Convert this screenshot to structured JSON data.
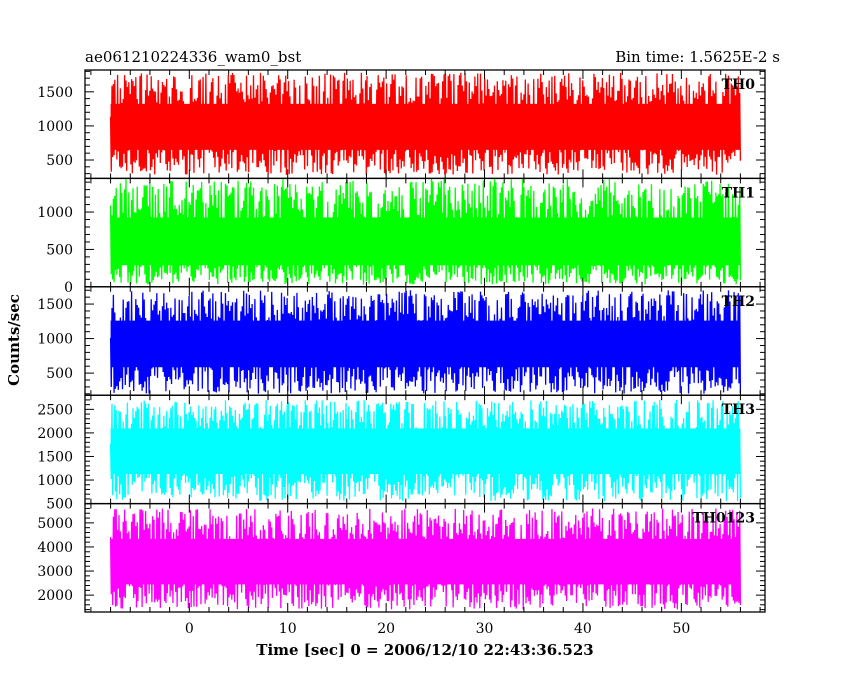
{
  "title_left": "ae061210224336_wam0_bst",
  "title_right": "Bin time: 1.5625E-2 s",
  "ylabel": "Counts/sec",
  "xlabel": "Time [sec] 0 = 2006/12/10 22:43:36.523",
  "chart_data": {
    "type": "line",
    "x_range": [
      -8,
      56
    ],
    "xlim": [
      -10.6,
      58.5
    ],
    "x_ticks": [
      0,
      10,
      20,
      30,
      40,
      50
    ],
    "x_minor_step": 2,
    "bin_time": 0.015625,
    "panels": [
      {
        "label": "TH0",
        "color": "#ff0000",
        "ylim": [
          230,
          1820
        ],
        "y_ticks": [
          500,
          1000,
          1500
        ],
        "y_minor_step": 100,
        "approx_mean": 950,
        "approx_low": 280,
        "approx_high": 1780
      },
      {
        "label": "TH1",
        "color": "#00ff00",
        "ylim": [
          0,
          1450
        ],
        "y_ticks": [
          0,
          500,
          1000
        ],
        "y_minor_step": 100,
        "approx_mean": 500,
        "approx_low": 30,
        "approx_high": 1450
      },
      {
        "label": "TH2",
        "color": "#0000ff",
        "ylim": [
          180,
          1750
        ],
        "y_ticks": [
          500,
          1000,
          1500
        ],
        "y_minor_step": 100,
        "approx_mean": 900,
        "approx_low": 200,
        "approx_high": 1700
      },
      {
        "label": "TH3",
        "color": "#00ffff",
        "ylim": [
          500,
          2800
        ],
        "y_ticks": [
          500,
          1000,
          1500,
          2000,
          2500
        ],
        "y_minor_step": 100,
        "approx_mean": 1600,
        "approx_low": 550,
        "approx_high": 2700
      },
      {
        "label": "TH0123",
        "color": "#ff00ff",
        "ylim": [
          1300,
          5800
        ],
        "y_ticks": [
          2000,
          3000,
          4000,
          5000
        ],
        "y_minor_step": 200,
        "approx_mean": 3300,
        "approx_low": 1400,
        "approx_high": 5600
      }
    ]
  }
}
